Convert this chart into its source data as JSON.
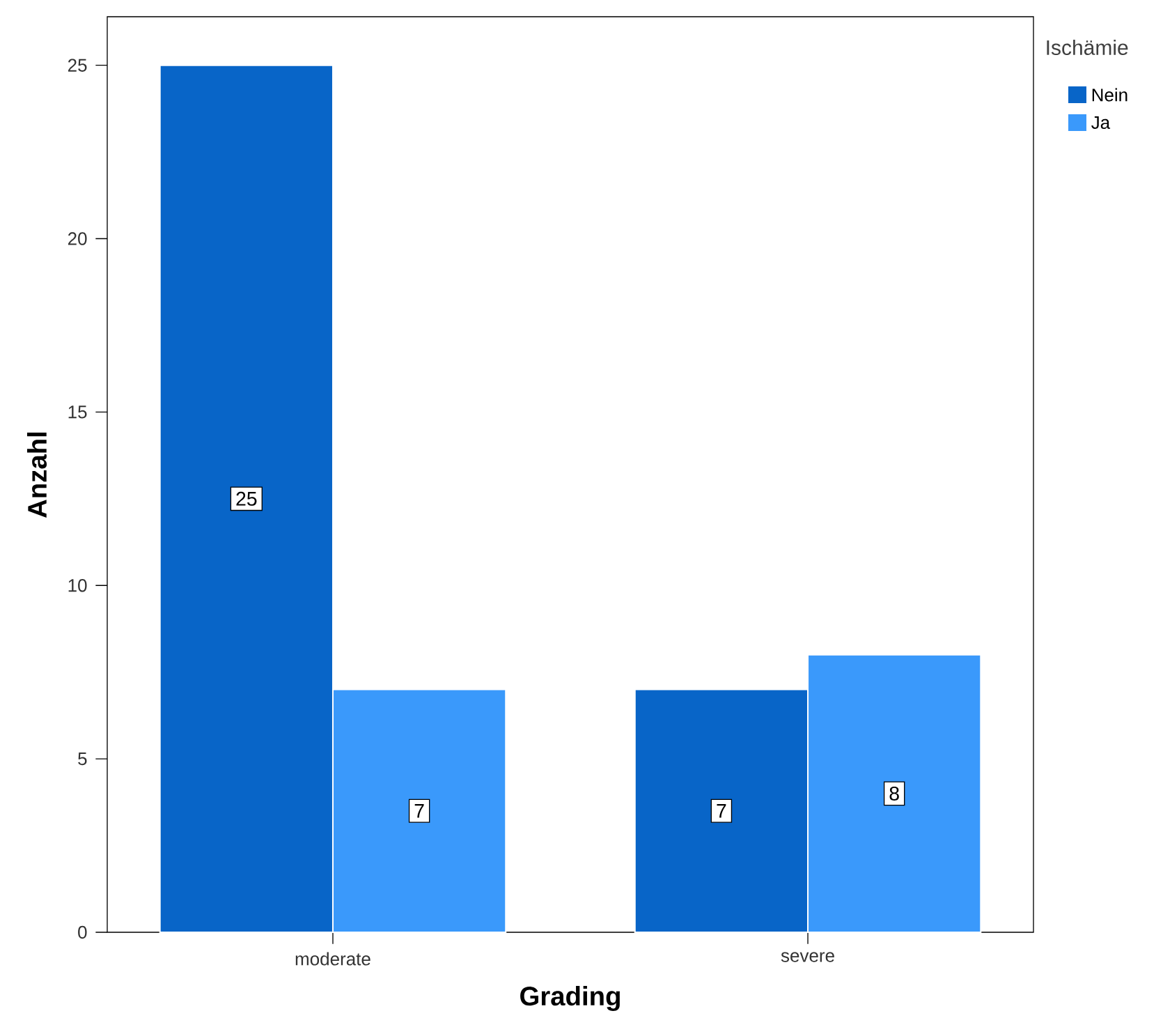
{
  "chart_data": {
    "type": "bar",
    "xlabel": "Grading",
    "ylabel": "Anzahl",
    "legend_title": "Ischämie",
    "categories": [
      "moderate",
      "severe"
    ],
    "series": [
      {
        "name": "Nein",
        "color": "#0865c8",
        "values": [
          25,
          7
        ]
      },
      {
        "name": "Ja",
        "color": "#3a99fb",
        "values": [
          7,
          8
        ]
      }
    ],
    "ylim": [
      0,
      26.4
    ],
    "yticks": [
      0,
      5,
      10,
      15,
      20,
      25
    ],
    "data_labels": true,
    "legend": "top right",
    "grid": false
  }
}
